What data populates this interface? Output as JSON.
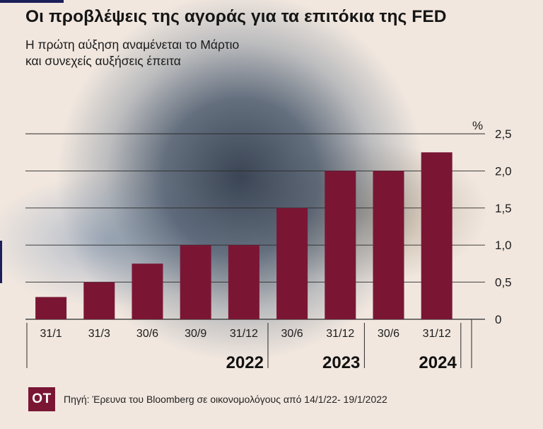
{
  "title": "Οι προβλέψεις της αγοράς για τα επιτόκια της FED",
  "subtitle": "Η πρώτη αύξηση αναμένεται το Μάρτιο\nκαι συνεχείς αυξήσεις έπειτα",
  "footer": {
    "logo": "OT",
    "source": "Πηγή: Έρευνα του Bloomberg σε οικονομολόγους από 14/1/22- 19/1/2022"
  },
  "colors": {
    "bar": "#7a1634",
    "gridline": "#2a2a2a",
    "text": "#1b1b1b",
    "logo_bg": "#7a1634"
  },
  "chart_data": {
    "type": "bar",
    "unit_label": "%",
    "categories": [
      "31/1",
      "31/3",
      "30/6",
      "30/9",
      "31/12",
      "30/6",
      "31/12",
      "30/6",
      "31/12"
    ],
    "values": [
      0.3,
      0.5,
      0.75,
      1.0,
      1.0,
      1.5,
      2.0,
      2.0,
      2.25
    ],
    "groups": [
      {
        "label": "2022",
        "start": 0,
        "end": 4
      },
      {
        "label": "2023",
        "start": 5,
        "end": 6
      },
      {
        "label": "2024",
        "start": 7,
        "end": 8
      }
    ],
    "yticks": [
      0,
      0.5,
      1.0,
      1.5,
      2.0,
      2.5
    ],
    "ytick_labels": [
      "0",
      "0,5",
      "1,0",
      "1,5",
      "2,0",
      "2,5"
    ],
    "ylim": [
      0,
      2.5
    ],
    "grid": true,
    "yaxis_position": "right"
  }
}
